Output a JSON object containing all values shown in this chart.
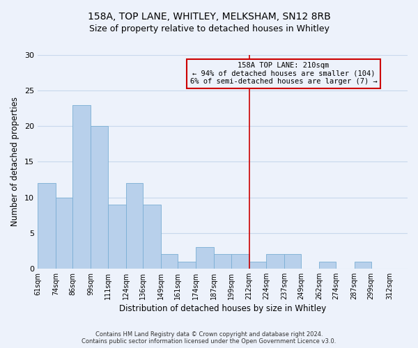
{
  "title": "158A, TOP LANE, WHITLEY, MELKSHAM, SN12 8RB",
  "subtitle": "Size of property relative to detached houses in Whitley",
  "xlabel": "Distribution of detached houses by size in Whitley",
  "ylabel": "Number of detached properties",
  "footer_line1": "Contains HM Land Registry data © Crown copyright and database right 2024.",
  "footer_line2": "Contains public sector information licensed under the Open Government Licence v3.0.",
  "bar_edges": [
    61,
    74,
    86,
    99,
    111,
    124,
    136,
    149,
    161,
    174,
    187,
    199,
    212,
    224,
    237,
    249,
    262,
    274,
    287,
    299,
    312
  ],
  "bar_heights": [
    12,
    10,
    23,
    20,
    9,
    12,
    9,
    2,
    1,
    3,
    2,
    2,
    1,
    2,
    2,
    0,
    1,
    0,
    1,
    0,
    0
  ],
  "bar_color": "#b8d0eb",
  "bar_edge_color": "#7aaed4",
  "grid_color": "#c8d8ec",
  "bg_color": "#edf2fb",
  "red_line_x": 212,
  "ylim": [
    0,
    30
  ],
  "yticks": [
    0,
    5,
    10,
    15,
    20,
    25,
    30
  ],
  "annotation_title": "158A TOP LANE: 210sqm",
  "annotation_line1": "← 94% of detached houses are smaller (104)",
  "annotation_line2": "6% of semi-detached houses are larger (7) →",
  "annotation_box_edge": "#cc0000",
  "red_line_color": "#cc0000",
  "title_fontsize": 10,
  "subtitle_fontsize": 9
}
